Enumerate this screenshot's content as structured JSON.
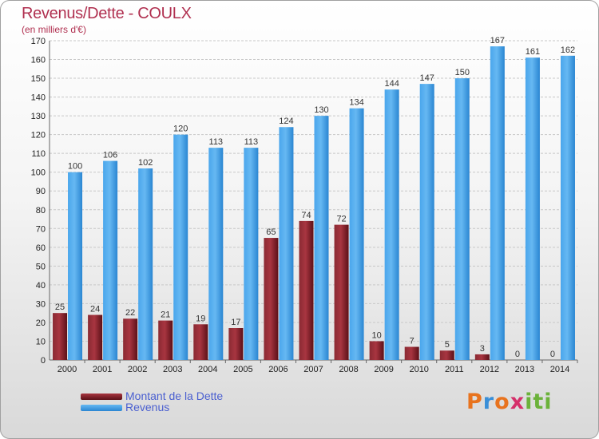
{
  "title": "Revenus/Dette - COULX",
  "subtitle": "(en milliers d'€)",
  "colors": {
    "debt": "#7a1e28",
    "debt_light": "#a83540",
    "revenue": "#3d9be6",
    "revenue_light": "#62b3f0",
    "grid": "#c8c8c8",
    "axis_text": "#222222"
  },
  "legend": {
    "debt_label": "Montant de la Dette",
    "revenue_label": "Revenus"
  },
  "logo": {
    "text": "Proxiti"
  },
  "chart_data": {
    "type": "bar",
    "title": "Revenus/Dette - COULX",
    "ylabel": "(en milliers d'€)",
    "xlabel": "",
    "ylim": [
      0,
      170
    ],
    "y_ticks": [
      0,
      10,
      20,
      30,
      40,
      50,
      60,
      70,
      80,
      90,
      100,
      110,
      120,
      130,
      140,
      150,
      160,
      170
    ],
    "grid": true,
    "categories": [
      "2000",
      "2001",
      "2002",
      "2003",
      "2004",
      "2005",
      "2006",
      "2007",
      "2008",
      "2009",
      "2010",
      "2011",
      "2012",
      "2013",
      "2014"
    ],
    "series": [
      {
        "name": "Montant de la Dette",
        "values": [
          25,
          24,
          22,
          21,
          19,
          17,
          65,
          74,
          72,
          10,
          7,
          5,
          3,
          0,
          0
        ]
      },
      {
        "name": "Revenus",
        "values": [
          100,
          106,
          102,
          120,
          113,
          113,
          124,
          130,
          134,
          144,
          147,
          150,
          167,
          161,
          162
        ]
      }
    ]
  }
}
